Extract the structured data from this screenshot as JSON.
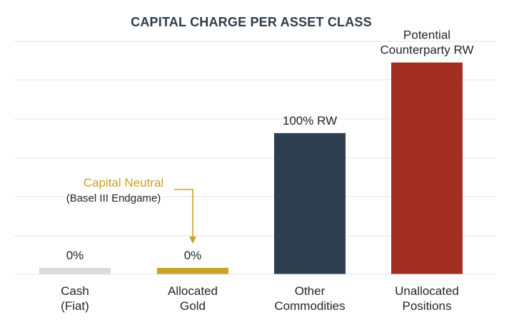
{
  "chart_data": {
    "type": "bar",
    "title": "CAPITAL CHARGE PER ASSET CLASS",
    "categories": [
      [
        "Cash",
        "(Fiat)"
      ],
      [
        "Allocated",
        "Gold"
      ],
      [
        "Other",
        "Commodities"
      ],
      [
        "Unallocated",
        "Positions"
      ]
    ],
    "values": [
      0,
      0,
      100,
      150
    ],
    "bar_colors": [
      "#dadcdc",
      "#c9a227",
      "#2c3e50",
      "#a32e22"
    ],
    "data_labels": [
      [
        "0%"
      ],
      [
        "0%"
      ],
      [
        "100% RW"
      ],
      [
        "Potential",
        "Counterparty RW"
      ]
    ],
    "annotation": {
      "title": "Capital Neutral",
      "subtitle": "(Basel III Endgame)",
      "target_category": 1,
      "color": "#c9a227"
    },
    "ylim": [
      0,
      165
    ],
    "grid": true,
    "xlabel": "",
    "ylabel": ""
  }
}
